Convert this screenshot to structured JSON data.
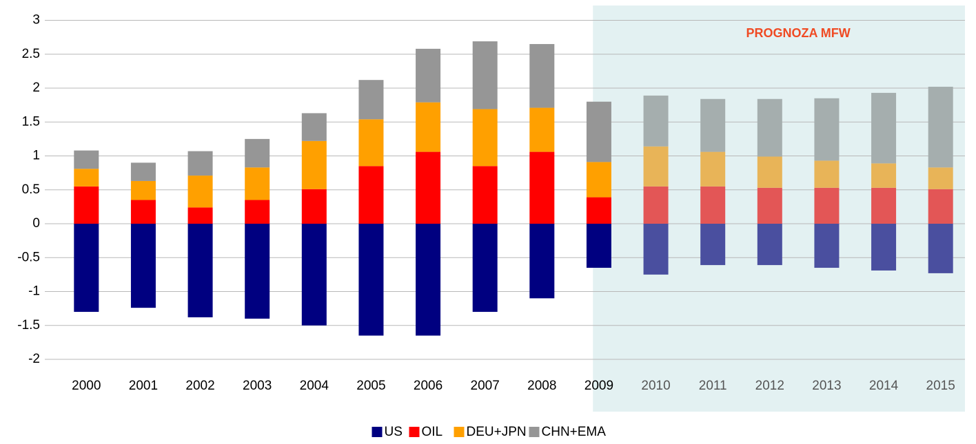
{
  "chart_data": {
    "type": "stacked_bar",
    "categories": [
      "2000",
      "2001",
      "2002",
      "2003",
      "2004",
      "2005",
      "2006",
      "2007",
      "2008",
      "2009",
      "2010",
      "2011",
      "2012",
      "2013",
      "2014",
      "2015"
    ],
    "series": [
      {
        "name": "US",
        "color": "#000080",
        "forecast_color": "#4a4f9f",
        "values": [
          -1.3,
          -1.24,
          -1.38,
          -1.4,
          -1.5,
          -1.65,
          -1.65,
          -1.3,
          -1.1,
          -0.65,
          -0.75,
          -0.61,
          -0.61,
          -0.65,
          -0.69,
          -0.73
        ]
      },
      {
        "name": "OIL",
        "color": "#ff0000",
        "forecast_color": "#e35656",
        "values": [
          0.55,
          0.35,
          0.24,
          0.35,
          0.51,
          0.85,
          1.06,
          0.85,
          1.06,
          0.39,
          0.55,
          0.55,
          0.53,
          0.53,
          0.53,
          0.51
        ]
      },
      {
        "name": "DEU+JPN",
        "color": "#ffa000",
        "forecast_color": "#e8b458",
        "values": [
          0.26,
          0.28,
          0.47,
          0.48,
          0.71,
          0.69,
          0.73,
          0.84,
          0.65,
          0.52,
          0.59,
          0.51,
          0.46,
          0.4,
          0.36,
          0.32
        ]
      },
      {
        "name": "CHN+EMA",
        "color": "#969696",
        "forecast_color": "#a5aeae",
        "values": [
          0.27,
          0.27,
          0.36,
          0.42,
          0.41,
          0.58,
          0.79,
          1.0,
          0.94,
          0.89,
          0.75,
          0.78,
          0.85,
          0.92,
          1.04,
          1.19
        ]
      }
    ],
    "ylim": [
      -2,
      3
    ],
    "yticks": [
      -2,
      -1.5,
      -1,
      -0.5,
      0,
      0.5,
      1,
      1.5,
      2,
      2.5,
      3
    ],
    "grid": true,
    "forecast_from": "2010",
    "forecast_shade": "#e3f1f2",
    "forecast_label": "PROGNOZA MFW",
    "forecast_label_color": "#f04a23",
    "legend": "bottom"
  }
}
